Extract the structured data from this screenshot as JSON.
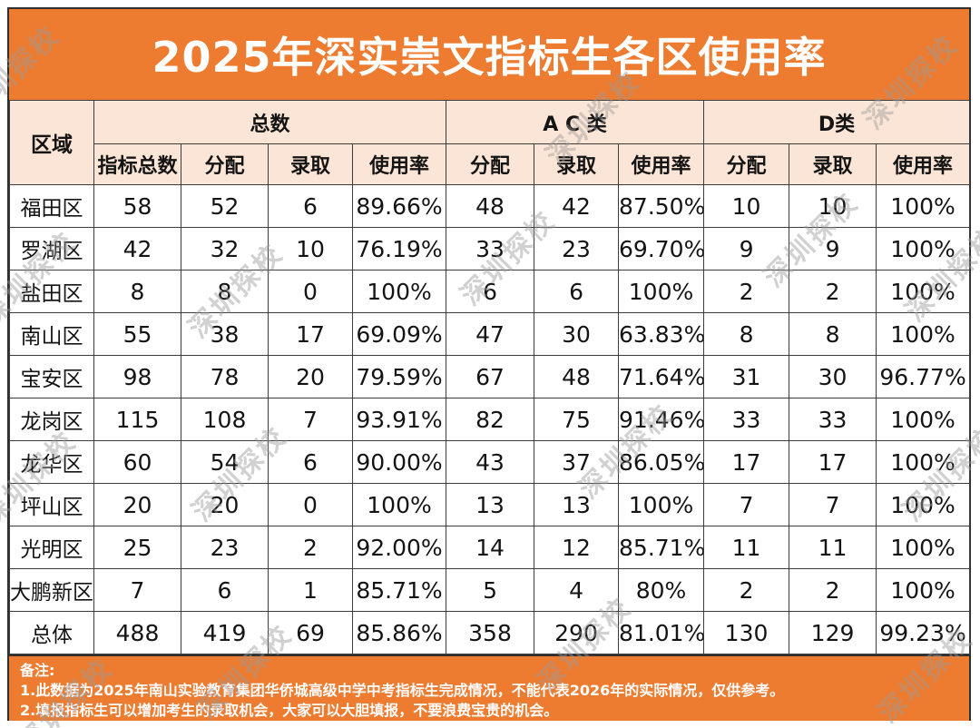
{
  "title": "2025年深实崇文指标生各区使用率",
  "watermark": {
    "text": "深圳探校"
  },
  "colors": {
    "accent_orange": "#ED7C31",
    "header_fill": "#FBE5D6",
    "grid_line": "#3C3C3C",
    "title_text": "#FFFFFF",
    "body_text": "#141414",
    "watermark_gray": "#BFBFBF"
  },
  "table": {
    "region_header": "区域",
    "groups": [
      {
        "label": "总数",
        "cols": [
          "指标总数",
          "分配",
          "录取",
          "使用率"
        ]
      },
      {
        "label": "A C 类",
        "cols": [
          "分配",
          "录取",
          "使用率"
        ]
      },
      {
        "label": "D类",
        "cols": [
          "分配",
          "录取",
          "使用率"
        ]
      }
    ],
    "rows": [
      {
        "region": "福田区",
        "cells": [
          "58",
          "52",
          "6",
          "89.66%",
          "48",
          "42",
          "87.50%",
          "10",
          "10",
          "100%"
        ]
      },
      {
        "region": "罗湖区",
        "cells": [
          "42",
          "32",
          "10",
          "76.19%",
          "33",
          "23",
          "69.70%",
          "9",
          "9",
          "100%"
        ]
      },
      {
        "region": "盐田区",
        "cells": [
          "8",
          "8",
          "0",
          "100%",
          "6",
          "6",
          "100%",
          "2",
          "2",
          "100%"
        ]
      },
      {
        "region": "南山区",
        "cells": [
          "55",
          "38",
          "17",
          "69.09%",
          "47",
          "30",
          "63.83%",
          "8",
          "8",
          "100%"
        ]
      },
      {
        "region": "宝安区",
        "cells": [
          "98",
          "78",
          "20",
          "79.59%",
          "67",
          "48",
          "71.64%",
          "31",
          "30",
          "96.77%"
        ]
      },
      {
        "region": "龙岗区",
        "cells": [
          "115",
          "108",
          "7",
          "93.91%",
          "82",
          "75",
          "91.46%",
          "33",
          "33",
          "100%"
        ]
      },
      {
        "region": "龙华区",
        "cells": [
          "60",
          "54",
          "6",
          "90.00%",
          "43",
          "37",
          "86.05%",
          "17",
          "17",
          "100%"
        ]
      },
      {
        "region": "坪山区",
        "cells": [
          "20",
          "20",
          "0",
          "100%",
          "13",
          "13",
          "100%",
          "7",
          "7",
          "100%"
        ]
      },
      {
        "region": "光明区",
        "cells": [
          "25",
          "23",
          "2",
          "92.00%",
          "14",
          "12",
          "85.71%",
          "11",
          "11",
          "100%"
        ]
      },
      {
        "region": "大鹏新区",
        "cells": [
          "7",
          "6",
          "1",
          "85.71%",
          "5",
          "4",
          "80%",
          "2",
          "2",
          "100%"
        ]
      },
      {
        "region": "总体",
        "cells": [
          "488",
          "419",
          "69",
          "85.86%",
          "358",
          "290",
          "81.01%",
          "130",
          "129",
          "99.23%"
        ]
      }
    ]
  },
  "notes": {
    "label": "备注:",
    "items": [
      "1.此数据为2025年南山实验教育集团华侨城高级中学中考指标生完成情况，不能代表2026年的实际情况，仅供参考。",
      "2.填报指标生可以增加考生的录取机会，大家可以大胆填报，不要浪费宝贵的机会。"
    ]
  }
}
